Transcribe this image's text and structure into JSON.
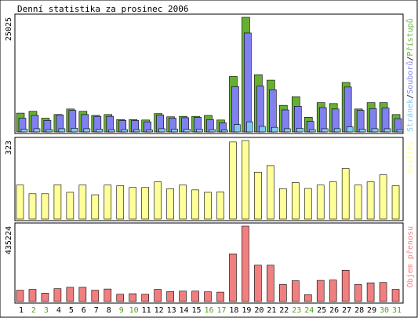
{
  "title": "Denní statistika za prosinec 2006",
  "colors": {
    "hits": "#66b031",
    "files": "#8080f0",
    "pages": "#80c8f0",
    "visits": "#ffff99",
    "kbytes": "#f08080",
    "weekday_label": "#000000",
    "weekend_label": "#4fa020"
  },
  "chart_data": [
    {
      "type": "bar",
      "panel": "top",
      "max_label": "25025",
      "legend": {
        "pages": "Stránek",
        "files": "Souborů",
        "hits": "Přístupů",
        "separator": "/"
      },
      "categories": [
        "1",
        "2",
        "3",
        "4",
        "5",
        "6",
        "7",
        "8",
        "9",
        "10",
        "11",
        "12",
        "13",
        "14",
        "15",
        "16",
        "17",
        "18",
        "19",
        "20",
        "21",
        "22",
        "23",
        "24",
        "25",
        "26",
        "27",
        "28",
        "29",
        "30",
        "31"
      ],
      "weekend": [
        false,
        true,
        true,
        false,
        false,
        false,
        false,
        false,
        true,
        true,
        false,
        false,
        false,
        false,
        false,
        true,
        true,
        false,
        false,
        false,
        false,
        false,
        true,
        true,
        false,
        false,
        false,
        false,
        false,
        true,
        true
      ],
      "ylim": [
        0,
        25025
      ],
      "series": [
        {
          "name": "Přístupů",
          "values": [
            4100,
            4500,
            3000,
            3800,
            5000,
            4500,
            3600,
            3800,
            2700,
            2700,
            2600,
            4000,
            3300,
            3400,
            3400,
            3600,
            2600,
            12100,
            25025,
            12500,
            11300,
            5800,
            7700,
            3200,
            6400,
            6200,
            10800,
            5000,
            6400,
            6400,
            3800
          ]
        },
        {
          "name": "Souborů",
          "values": [
            3000,
            3600,
            2500,
            3700,
            4700,
            3800,
            3400,
            3400,
            2500,
            2500,
            2200,
            3700,
            3000,
            3100,
            3200,
            2700,
            2000,
            9900,
            21600,
            10000,
            9200,
            4800,
            5600,
            2300,
            5300,
            5000,
            9800,
            4700,
            5100,
            5200,
            2900
          ]
        },
        {
          "name": "Stránek",
          "values": [
            600,
            700,
            500,
            700,
            800,
            700,
            600,
            500,
            500,
            500,
            400,
            700,
            600,
            600,
            600,
            500,
            400,
            1600,
            2200,
            1200,
            1000,
            700,
            800,
            500,
            700,
            700,
            1100,
            600,
            700,
            700,
            500
          ]
        }
      ]
    },
    {
      "type": "bar",
      "panel": "middle",
      "max_label": "323",
      "legend": "Návštěv",
      "categories": [
        "1",
        "2",
        "3",
        "4",
        "5",
        "6",
        "7",
        "8",
        "9",
        "10",
        "11",
        "12",
        "13",
        "14",
        "15",
        "16",
        "17",
        "18",
        "19",
        "20",
        "21",
        "22",
        "23",
        "24",
        "25",
        "26",
        "27",
        "28",
        "29",
        "30",
        "31"
      ],
      "ylim": [
        0,
        323
      ],
      "series": [
        {
          "name": "Návštěv",
          "values": [
            140,
            104,
            104,
            141,
            110,
            140,
            100,
            140,
            137,
            130,
            130,
            153,
            125,
            140,
            120,
            110,
            112,
            317,
            323,
            193,
            220,
            125,
            150,
            126,
            140,
            153,
            208,
            140,
            153,
            182,
            137
          ]
        }
      ]
    },
    {
      "type": "bar",
      "panel": "bottom",
      "max_label": "435224",
      "legend": "Objem přenosu",
      "categories": [
        "1",
        "2",
        "3",
        "4",
        "5",
        "6",
        "7",
        "8",
        "9",
        "10",
        "11",
        "12",
        "13",
        "14",
        "15",
        "16",
        "17",
        "18",
        "19",
        "20",
        "21",
        "22",
        "23",
        "24",
        "25",
        "26",
        "27",
        "28",
        "29",
        "30",
        "31"
      ],
      "ylim": [
        0,
        435224
      ],
      "series": [
        {
          "name": "Objem přenosu",
          "values": [
            65000,
            70000,
            48000,
            74000,
            82000,
            82000,
            65000,
            72000,
            42000,
            45000,
            42000,
            70000,
            58000,
            60000,
            60000,
            56000,
            54000,
            275000,
            435224,
            210000,
            210000,
            98000,
            120000,
            40000,
            122000,
            124000,
            180000,
            98000,
            108000,
            110000,
            70000
          ]
        }
      ]
    }
  ]
}
